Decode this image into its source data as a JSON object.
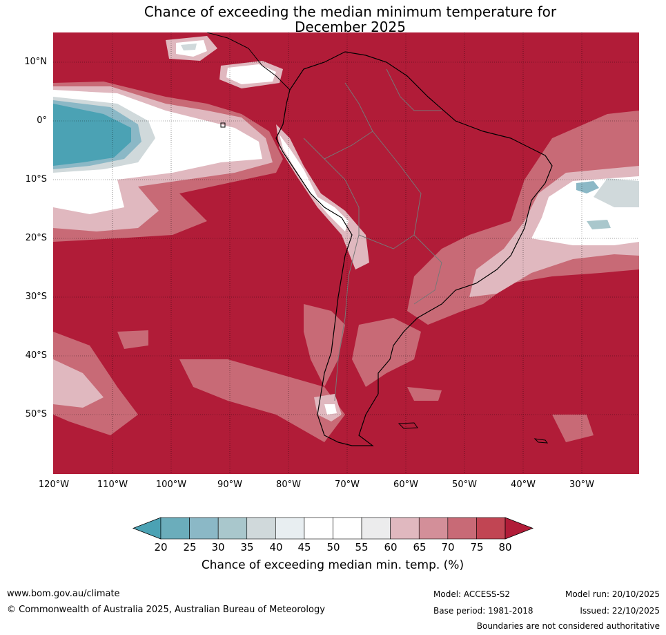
{
  "title": {
    "line1": "Chance of exceeding the median minimum temperature for",
    "line2": "December 2025"
  },
  "axes": {
    "lat_labels": [
      "10°N",
      "0°",
      "10°S",
      "20°S",
      "30°S",
      "40°S",
      "50°S"
    ],
    "lon_labels": [
      "120°W",
      "110°W",
      "100°W",
      "90°W",
      "80°W",
      "70°W",
      "60°W",
      "50°W",
      "40°W",
      "30°W"
    ]
  },
  "legend": {
    "ticks": [
      "20",
      "25",
      "30",
      "35",
      "40",
      "45",
      "50",
      "55",
      "60",
      "65",
      "70",
      "75",
      "80"
    ],
    "colors": [
      "#4ba2b4",
      "#6badbb",
      "#8bb8c6",
      "#a9c7cc",
      "#d0d9db",
      "#e8eef1",
      "#ffffff",
      "#ffffff",
      "#ececed",
      "#e0b8bf",
      "#d38f99",
      "#c86a76",
      "#c14553",
      "#b11c38"
    ],
    "label": "Chance of exceeding median min. temp. (%)"
  },
  "footer": {
    "website": "www.bom.gov.au/climate",
    "copyright": "© Commonwealth of Australia 2025, Australian Bureau of Meteorology",
    "model": "Model: ACCESS-S2",
    "base_period": "Base period: 1981-2018",
    "model_run": "Model run: 20/10/2025",
    "issued": "Issued: 22/10/2025",
    "boundaries": "Boundaries are not considered authoritative"
  }
}
